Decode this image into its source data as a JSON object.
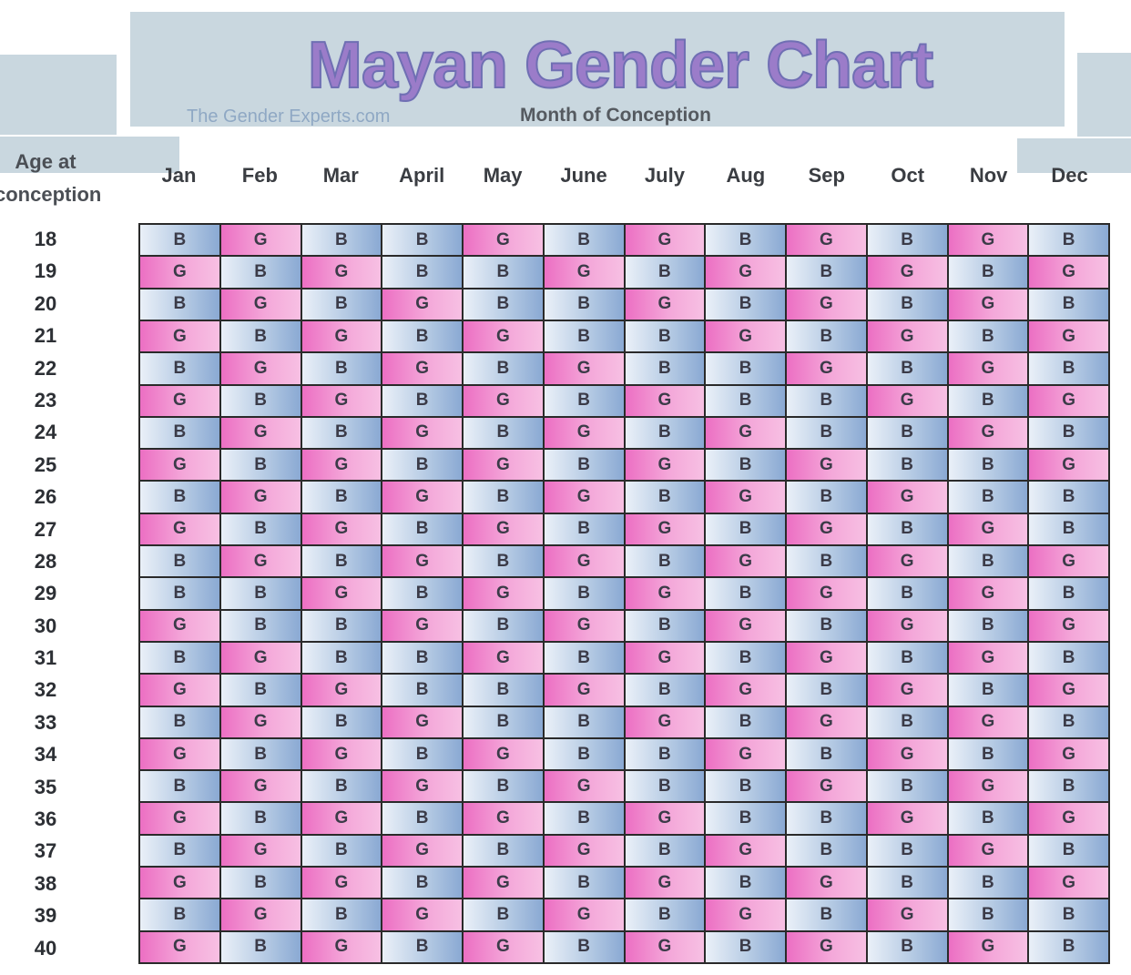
{
  "chart_data": {
    "type": "table",
    "title": "Mayan Gender Chart",
    "site": "The Gender Experts.com",
    "column_header": "Month of Conception",
    "row_header": [
      "Age at",
      "conception"
    ],
    "columns": [
      "Jan",
      "Feb",
      "Mar",
      "April",
      "May",
      "June",
      "July",
      "Aug",
      "Sep",
      "Oct",
      "Nov",
      "Dec"
    ],
    "rows": [
      "18",
      "19",
      "20",
      "21",
      "22",
      "23",
      "24",
      "25",
      "26",
      "27",
      "28",
      "29",
      "30",
      "31",
      "32",
      "33",
      "34",
      "35",
      "36",
      "37",
      "38",
      "39",
      "40"
    ],
    "cells": [
      [
        "B",
        "G",
        "B",
        "B",
        "G",
        "B",
        "G",
        "B",
        "G",
        "B",
        "G",
        "B"
      ],
      [
        "G",
        "B",
        "G",
        "B",
        "B",
        "G",
        "B",
        "G",
        "B",
        "G",
        "B",
        "G"
      ],
      [
        "B",
        "G",
        "B",
        "G",
        "B",
        "B",
        "G",
        "B",
        "G",
        "B",
        "G",
        "B"
      ],
      [
        "G",
        "B",
        "G",
        "B",
        "G",
        "B",
        "B",
        "G",
        "B",
        "G",
        "B",
        "G"
      ],
      [
        "B",
        "G",
        "B",
        "G",
        "B",
        "G",
        "B",
        "B",
        "G",
        "B",
        "G",
        "B"
      ],
      [
        "G",
        "B",
        "G",
        "B",
        "G",
        "B",
        "G",
        "B",
        "B",
        "G",
        "B",
        "G"
      ],
      [
        "B",
        "G",
        "B",
        "G",
        "B",
        "G",
        "B",
        "G",
        "B",
        "B",
        "G",
        "B"
      ],
      [
        "G",
        "B",
        "G",
        "B",
        "G",
        "B",
        "G",
        "B",
        "G",
        "B",
        "B",
        "G"
      ],
      [
        "B",
        "G",
        "B",
        "G",
        "B",
        "G",
        "B",
        "G",
        "B",
        "G",
        "B",
        "B"
      ],
      [
        "G",
        "B",
        "G",
        "B",
        "G",
        "B",
        "G",
        "B",
        "G",
        "B",
        "G",
        "B"
      ],
      [
        "B",
        "G",
        "B",
        "G",
        "B",
        "G",
        "B",
        "G",
        "B",
        "G",
        "B",
        "G"
      ],
      [
        "B",
        "B",
        "G",
        "B",
        "G",
        "B",
        "G",
        "B",
        "G",
        "B",
        "G",
        "B"
      ],
      [
        "G",
        "B",
        "B",
        "G",
        "B",
        "G",
        "B",
        "G",
        "B",
        "G",
        "B",
        "G"
      ],
      [
        "B",
        "G",
        "B",
        "B",
        "G",
        "B",
        "G",
        "B",
        "G",
        "B",
        "G",
        "B"
      ],
      [
        "G",
        "B",
        "G",
        "B",
        "B",
        "G",
        "B",
        "G",
        "B",
        "G",
        "B",
        "G"
      ],
      [
        "B",
        "G",
        "B",
        "G",
        "B",
        "B",
        "G",
        "B",
        "G",
        "B",
        "G",
        "B"
      ],
      [
        "G",
        "B",
        "G",
        "B",
        "G",
        "B",
        "B",
        "G",
        "B",
        "G",
        "B",
        "G"
      ],
      [
        "B",
        "G",
        "B",
        "G",
        "B",
        "G",
        "B",
        "B",
        "G",
        "B",
        "G",
        "B"
      ],
      [
        "G",
        "B",
        "G",
        "B",
        "G",
        "B",
        "G",
        "B",
        "B",
        "G",
        "B",
        "G"
      ],
      [
        "B",
        "G",
        "B",
        "G",
        "B",
        "G",
        "B",
        "G",
        "B",
        "B",
        "G",
        "B"
      ],
      [
        "G",
        "B",
        "G",
        "B",
        "G",
        "B",
        "G",
        "B",
        "G",
        "B",
        "B",
        "G"
      ],
      [
        "B",
        "G",
        "B",
        "G",
        "B",
        "G",
        "B",
        "G",
        "B",
        "G",
        "B",
        "B"
      ],
      [
        "G",
        "B",
        "G",
        "B",
        "G",
        "B",
        "G",
        "B",
        "G",
        "B",
        "G",
        "B"
      ]
    ]
  },
  "colors": {
    "boy": "#a9c1e0",
    "girl": "#f08fcf",
    "banner": "#c9d7df",
    "title": "#9b7cc9"
  }
}
